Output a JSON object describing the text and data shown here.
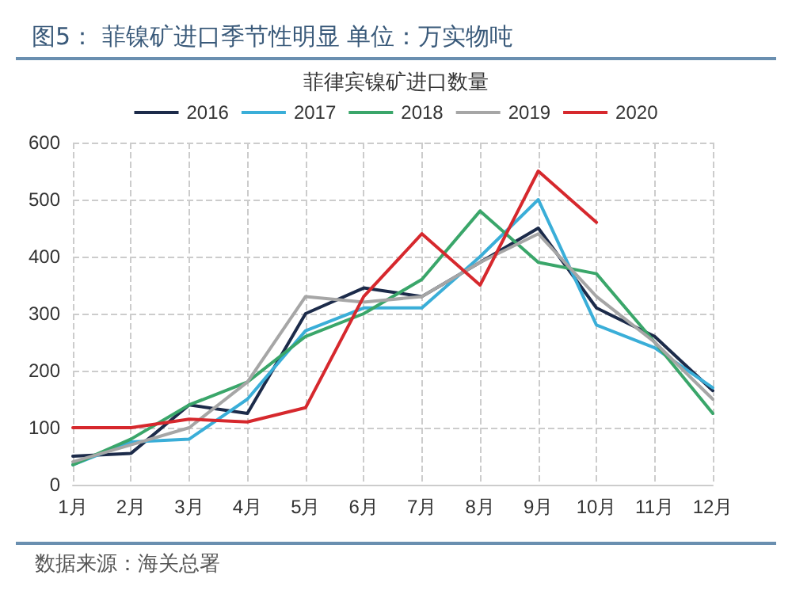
{
  "chart_data": {
    "type": "line",
    "title": "图5：  菲镍矿进口季节性明显    单位：万实物吨",
    "subtitle": "菲律宾镍矿进口数量",
    "categories": [
      "1月",
      "2月",
      "3月",
      "4月",
      "5月",
      "6月",
      "7月",
      "8月",
      "9月",
      "10月",
      "11月",
      "12月"
    ],
    "series": [
      {
        "name": "2016",
        "color": "#1c2b4a",
        "values": [
          50,
          55,
          140,
          125,
          300,
          345,
          330,
          390,
          450,
          310,
          260,
          165
        ]
      },
      {
        "name": "2017",
        "color": "#3aaed8",
        "values": [
          35,
          75,
          80,
          150,
          270,
          310,
          310,
          400,
          500,
          280,
          240,
          170
        ]
      },
      {
        "name": "2018",
        "color": "#3aa66a",
        "values": [
          35,
          80,
          140,
          180,
          260,
          300,
          360,
          480,
          390,
          370,
          250,
          125
        ]
      },
      {
        "name": "2019",
        "color": "#a6a6a6",
        "values": [
          40,
          70,
          100,
          180,
          330,
          320,
          330,
          390,
          440,
          330,
          250,
          150
        ]
      },
      {
        "name": "2020",
        "color": "#d6282d",
        "values": [
          100,
          100,
          115,
          110,
          135,
          330,
          440,
          350,
          550,
          460,
          null,
          null
        ]
      }
    ],
    "ylim": [
      0,
      600
    ],
    "yticks": [
      0,
      100,
      200,
      300,
      400,
      500,
      600
    ],
    "grid": true,
    "legend": "top",
    "marker": "none",
    "line_style": "solid",
    "annotations": [
      "数据来源：海关总署"
    ]
  }
}
